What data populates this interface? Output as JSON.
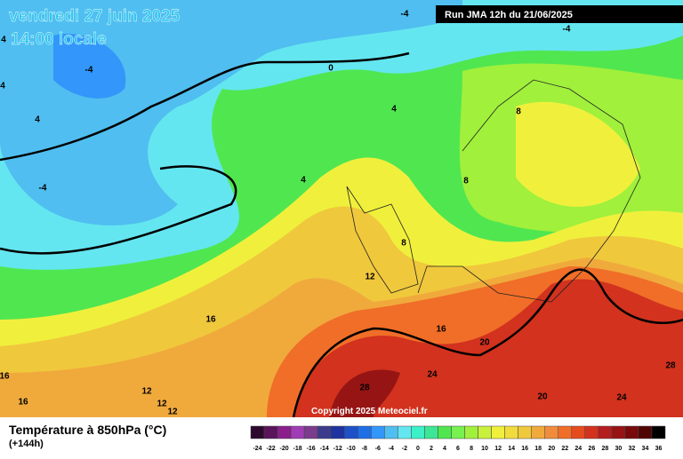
{
  "header": {
    "date": "vendredi 27 juin 2025",
    "time": "14:00 locale",
    "run": "Run JMA 12h du 21/06/2025"
  },
  "map": {
    "contour_labels": [
      "-4",
      "-4",
      "4",
      "-4",
      "0",
      "4",
      "4",
      "4",
      "8",
      "4",
      "-4",
      "8",
      "8",
      "12",
      "16",
      "16",
      "20",
      "16",
      "24",
      "28",
      "12",
      "16",
      "12",
      "12",
      "20",
      "24",
      "28"
    ],
    "copyright": "Copyright 2025 Meteociel.fr"
  },
  "legend": {
    "title": "Température à 850hPa (°C)",
    "subtitle": "(+144h)",
    "scale": [
      "-24",
      "-22",
      "-20",
      "-18",
      "-16",
      "-14",
      "-12",
      "-10",
      "-8",
      "-6",
      "-4",
      "-2",
      "0",
      "2",
      "4",
      "6",
      "8",
      "10",
      "12",
      "14",
      "16",
      "18",
      "20",
      "22",
      "24",
      "26",
      "28",
      "30",
      "32",
      "34",
      "36"
    ]
  }
}
